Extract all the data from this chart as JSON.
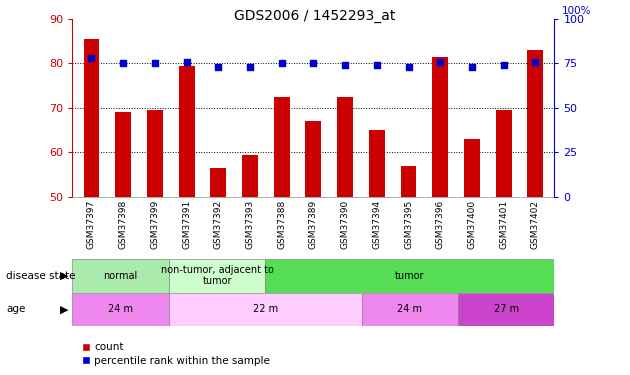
{
  "title": "GDS2006 / 1452293_at",
  "samples": [
    "GSM37397",
    "GSM37398",
    "GSM37399",
    "GSM37391",
    "GSM37392",
    "GSM37393",
    "GSM37388",
    "GSM37389",
    "GSM37390",
    "GSM37394",
    "GSM37395",
    "GSM37396",
    "GSM37400",
    "GSM37401",
    "GSM37402"
  ],
  "bar_values": [
    85.5,
    69.0,
    69.5,
    79.5,
    56.5,
    59.5,
    72.5,
    67.0,
    72.5,
    65.0,
    57.0,
    81.5,
    63.0,
    69.5,
    83.0
  ],
  "dot_values_pct": [
    78,
    75,
    75,
    76,
    73,
    73,
    75,
    75,
    74,
    74,
    73,
    76,
    73,
    74,
    76
  ],
  "ylim_left": [
    50,
    90
  ],
  "ylim_right": [
    0,
    100
  ],
  "yticks_left": [
    50,
    60,
    70,
    80,
    90
  ],
  "yticks_right": [
    0,
    25,
    50,
    75,
    100
  ],
  "bar_color": "#cc0000",
  "dot_color": "#0000cc",
  "background_color": "#ffffff",
  "disease_state_groups": [
    {
      "label": "normal",
      "start": 0,
      "end": 3,
      "color": "#aaeaaa"
    },
    {
      "label": "non-tumor, adjacent to\ntumor",
      "start": 3,
      "end": 6,
      "color": "#ccffcc"
    },
    {
      "label": "tumor",
      "start": 6,
      "end": 15,
      "color": "#55dd55"
    }
  ],
  "age_groups": [
    {
      "label": "24 m",
      "start": 0,
      "end": 3,
      "color": "#ee88ee"
    },
    {
      "label": "22 m",
      "start": 3,
      "end": 9,
      "color": "#ffccff"
    },
    {
      "label": "24 m",
      "start": 9,
      "end": 12,
      "color": "#ee88ee"
    },
    {
      "label": "27 m",
      "start": 12,
      "end": 15,
      "color": "#cc44cc"
    }
  ],
  "legend_count_color": "#cc0000",
  "legend_pct_color": "#0000cc",
  "left_axis_color": "#cc0000",
  "right_axis_color": "#0000cc",
  "bar_bottom": 50,
  "grid_yticks": [
    60,
    70,
    80
  ]
}
